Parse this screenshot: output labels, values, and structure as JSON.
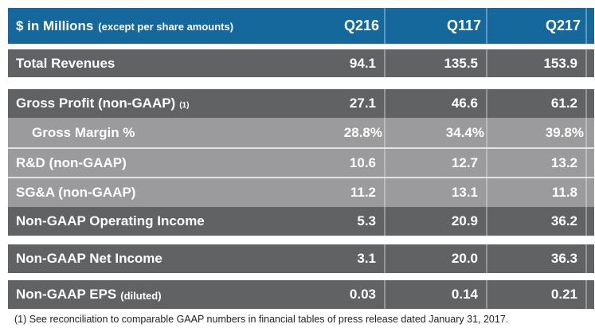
{
  "chart_data": {
    "type": "table",
    "title": "$ in Millions",
    "title_note": "(except per share amounts)",
    "columns": [
      "Q216",
      "Q117",
      "Q217"
    ],
    "rows": [
      {
        "label": "Total Revenues",
        "note": "",
        "values": [
          "94.1",
          "135.5",
          "153.9"
        ]
      },
      {
        "label": "Gross Profit (non-GAAP)",
        "note": "(1)",
        "values": [
          "27.1",
          "46.6",
          "61.2"
        ]
      },
      {
        "label": "Gross Margin %",
        "note": "",
        "values": [
          "28.8%",
          "34.4%",
          "39.8%"
        ]
      },
      {
        "label": "R&D (non-GAAP)",
        "note": "",
        "values": [
          "10.6",
          "12.7",
          "13.2"
        ]
      },
      {
        "label": "SG&A (non-GAAP)",
        "note": "",
        "values": [
          "11.2",
          "13.1",
          "11.8"
        ]
      },
      {
        "label": "Non-GAAP Operating Income",
        "note": "",
        "values": [
          "5.3",
          "20.9",
          "36.2"
        ]
      },
      {
        "label": "Non-GAAP Net Income",
        "note": "",
        "values": [
          "3.1",
          "20.0",
          "36.3"
        ]
      },
      {
        "label": "Non-GAAP EPS",
        "note": "(diluted)",
        "values": [
          "0.03",
          "0.14",
          "0.21"
        ]
      }
    ],
    "footnote": "(1) See reconciliation to comparable GAAP numbers in financial tables of press release dated January 31, 2017."
  },
  "colors": {
    "header_blue": "#14689B",
    "row_dark": "#616264",
    "row_light": "#9B9B9D",
    "text_white": "#FFFFFF",
    "footnote_text": "#1F1F1F"
  }
}
